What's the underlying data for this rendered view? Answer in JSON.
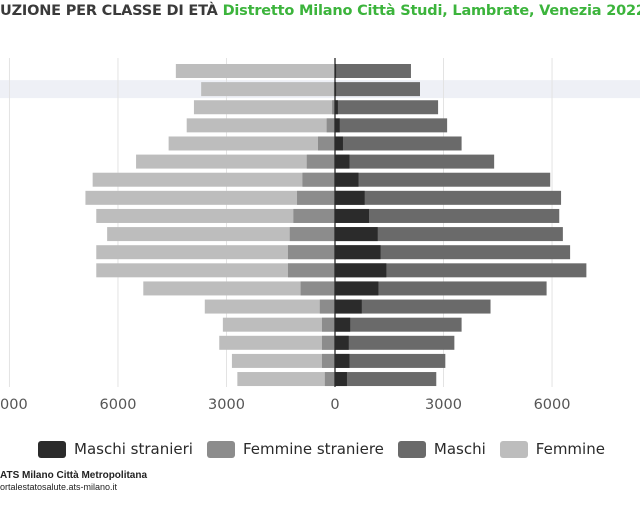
{
  "header": {
    "title_part1": "UZIONE PER CLASSE DI ETÀ",
    "title_part2": "Distretto Milano Città Studi, Lambrate, Venezia 2022"
  },
  "colors": {
    "maschi_stranieri": "#2b2b2b",
    "femmine_straniere": "#8c8c8c",
    "maschi": "#6a6a6a",
    "femmine": "#bdbdbd",
    "title_green": "#3cb43c",
    "grid": "#e3e3e3",
    "band": "#eef0f6"
  },
  "chart_data": {
    "type": "bar",
    "orientation": "horizontal",
    "layout": "population-pyramid",
    "categories_from_top": [
      "",
      "",
      "",
      "",
      "",
      "",
      "",
      "",
      "",
      "",
      "",
      "",
      "",
      "",
      "",
      "",
      "",
      ""
    ],
    "x_tick_labels": [
      "000",
      "6000",
      "3000",
      "0",
      "3000",
      "6000"
    ],
    "xlim": [
      -9000,
      8000
    ],
    "grid": true,
    "legend_position": "bottom",
    "series": [
      {
        "name": "Femmine",
        "side": "left",
        "values": [
          4400,
          3700,
          3900,
          4100,
          4600,
          5500,
          6700,
          6900,
          6600,
          6300,
          6600,
          6600,
          5300,
          3600,
          3100,
          3200,
          2850,
          2700
        ]
      },
      {
        "name": "Femmine straniere",
        "side": "left",
        "values": [
          0,
          30,
          80,
          230,
          470,
          780,
          900,
          1050,
          1150,
          1250,
          1300,
          1300,
          950,
          420,
          360,
          360,
          360,
          280
        ]
      },
      {
        "name": "Maschi",
        "side": "right",
        "values": [
          2100,
          2350,
          2850,
          3100,
          3500,
          4400,
          5950,
          6250,
          6200,
          6300,
          6500,
          6950,
          5850,
          4300,
          3500,
          3300,
          3050,
          2800
        ]
      },
      {
        "name": "Maschi stranieri",
        "side": "right",
        "values": [
          30,
          30,
          80,
          130,
          220,
          400,
          650,
          820,
          940,
          1180,
          1260,
          1420,
          1200,
          740,
          420,
          380,
          400,
          330
        ]
      }
    ]
  },
  "legend": [
    {
      "label": "Maschi stranieri",
      "color": "#2b2b2b"
    },
    {
      "label": "Femmine straniere",
      "color": "#8c8c8c"
    },
    {
      "label": "Maschi",
      "color": "#6a6a6a"
    },
    {
      "label": "Femmine",
      "color": "#bdbdbd"
    }
  ],
  "footer": {
    "org": "ATS Milano Città Metropolitana",
    "url": "ortalestatosalute.ats-milano.it"
  }
}
